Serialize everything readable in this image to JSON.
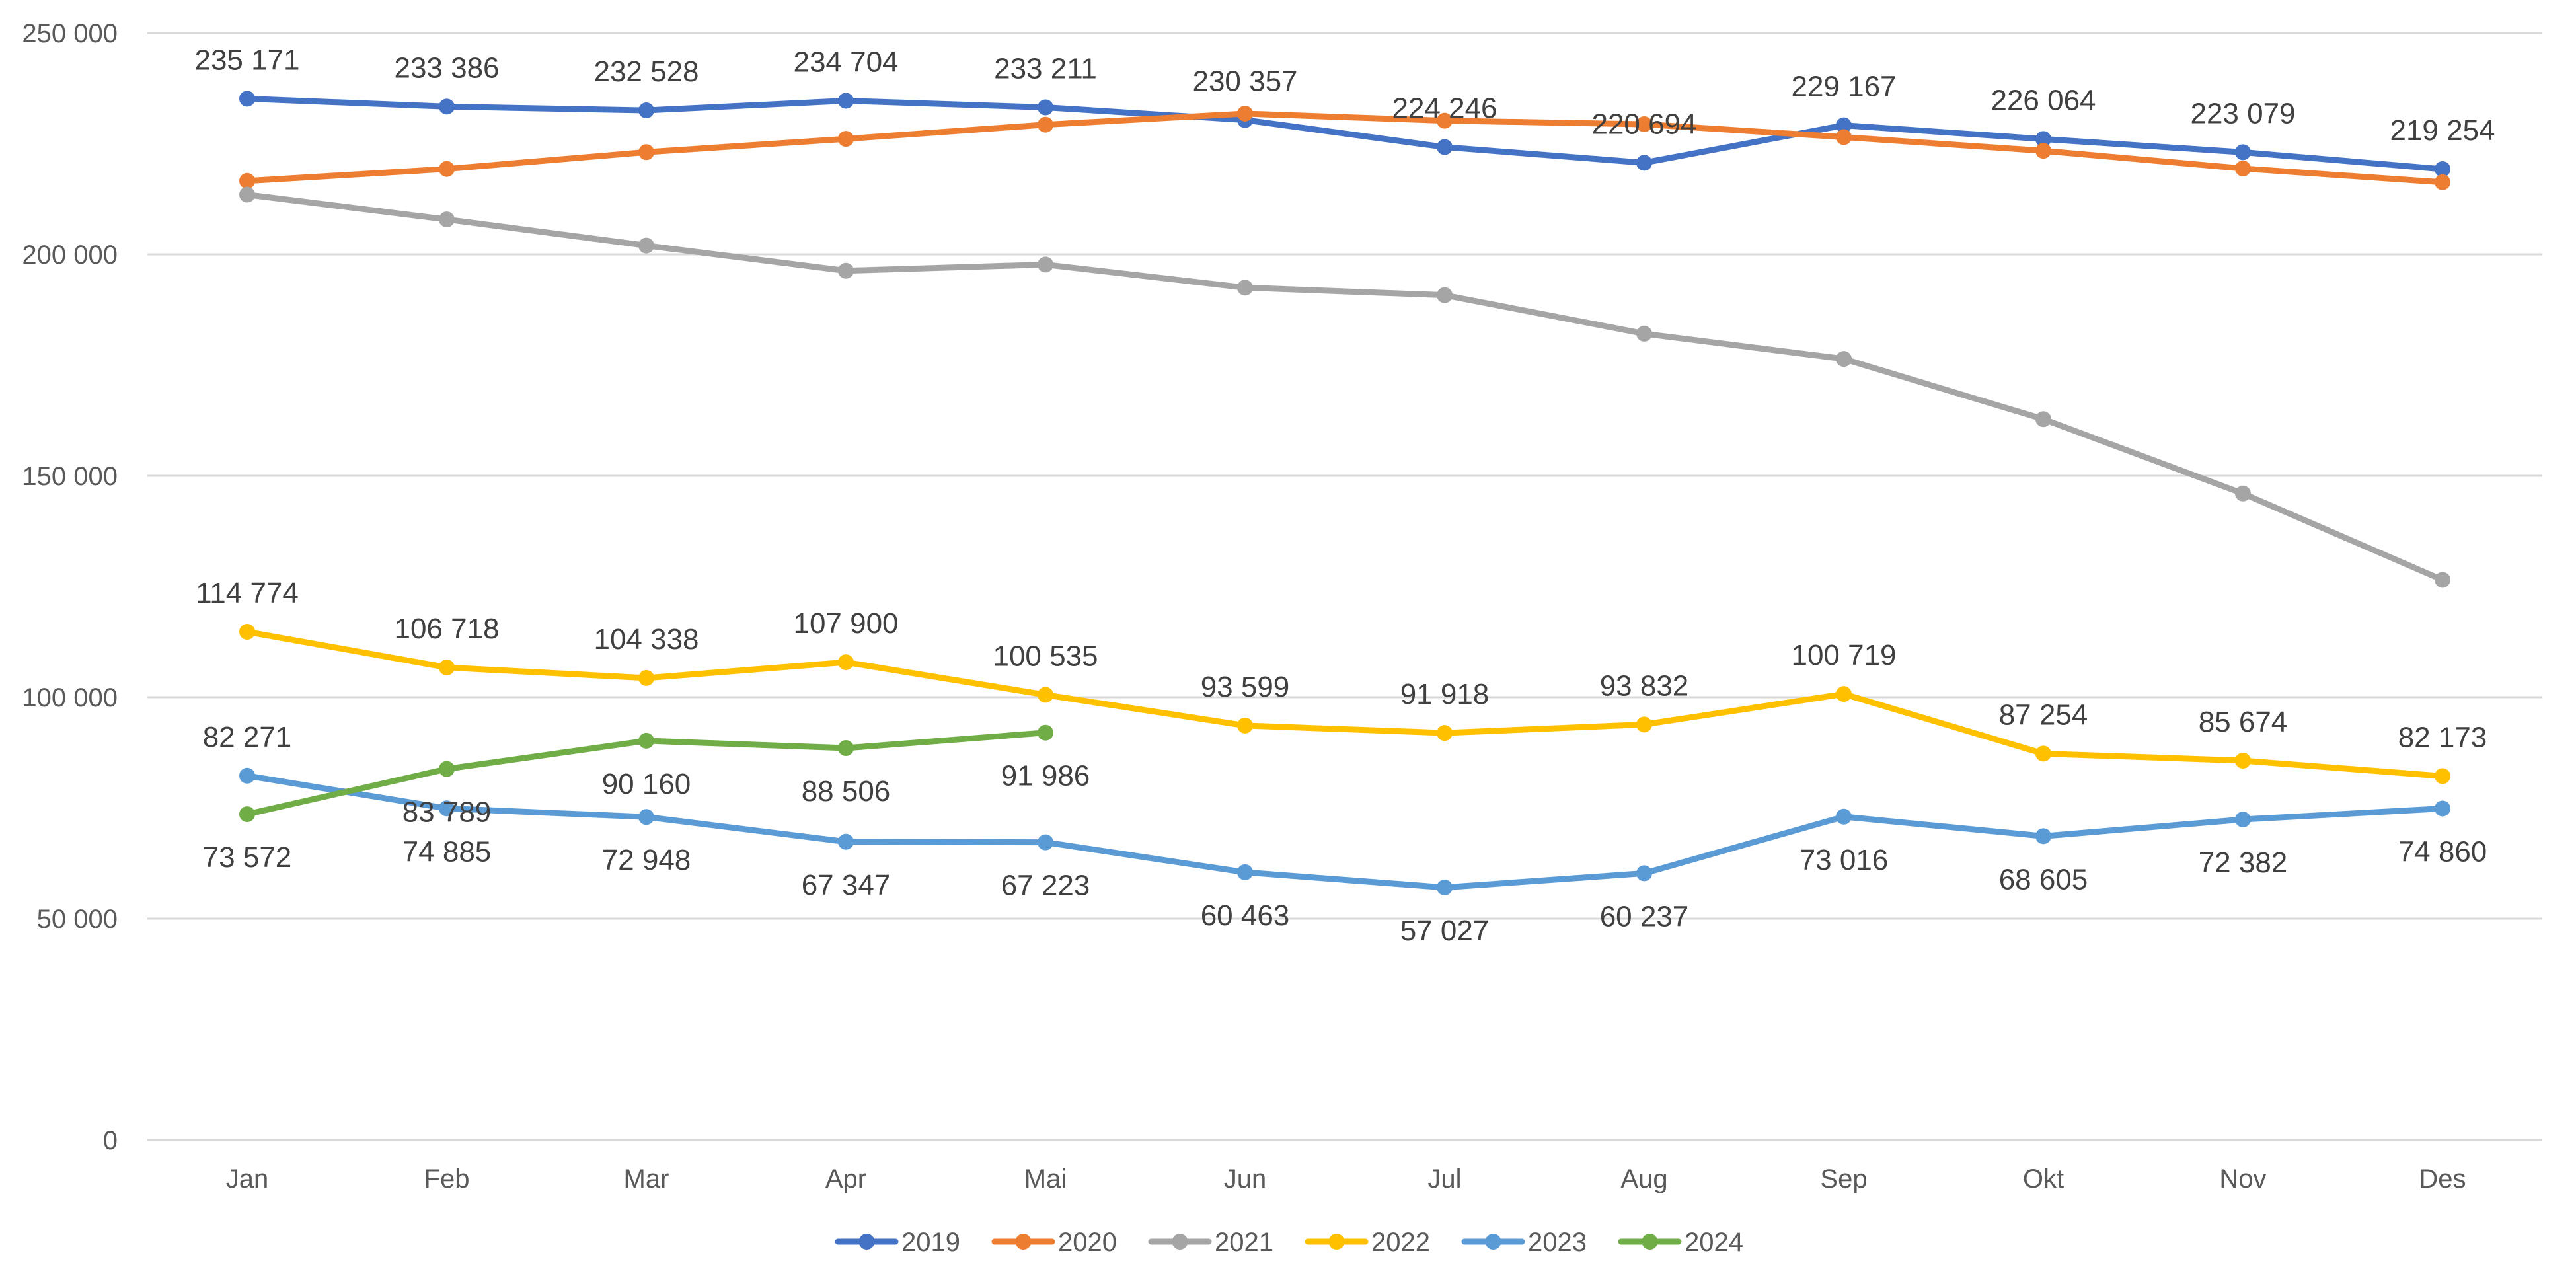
{
  "chart_data": {
    "type": "line",
    "title": "",
    "xlabel": "",
    "ylabel": "",
    "categories": [
      "Jan",
      "Feb",
      "Mar",
      "Apr",
      "Mai",
      "Jun",
      "Jul",
      "Aug",
      "Sep",
      "Okt",
      "Nov",
      "Des"
    ],
    "ylim": [
      0,
      250000
    ],
    "yticks": [
      0,
      50000,
      100000,
      150000,
      200000,
      250000
    ],
    "ytick_labels": [
      "0",
      "50 000",
      "100 000",
      "150 000",
      "200 000",
      "250 000"
    ],
    "grid": true,
    "legend_position": "bottom",
    "series": [
      {
        "name": "2019",
        "color": "#4472C4",
        "values": [
          235171,
          233386,
          232528,
          234704,
          233211,
          230357,
          224246,
          220694,
          229167,
          226064,
          223079,
          219254
        ],
        "labels": [
          "235 171",
          "233 386",
          "232 528",
          "234 704",
          "233 211",
          "230 357",
          "224 246",
          "220 694",
          "229 167",
          "226 064",
          "223 079",
          "219 254"
        ],
        "label_position": [
          "above",
          "above",
          "above",
          "above",
          "above",
          "above",
          "above",
          "above",
          "above",
          "above",
          "above",
          "above"
        ]
      },
      {
        "name": "2020",
        "color": "#ED7D31",
        "values": [
          216600,
          219300,
          223100,
          226100,
          229300,
          231800,
          230200,
          229400,
          226500,
          223400,
          219400,
          216300
        ],
        "labels": null,
        "estimated": true
      },
      {
        "name": "2021",
        "color": "#A5A5A5",
        "values": [
          213500,
          207900,
          202000,
          196300,
          197700,
          192500,
          190800,
          182100,
          176400,
          162800,
          146000,
          126500
        ],
        "labels": null,
        "estimated": true
      },
      {
        "name": "2022",
        "color": "#FFC000",
        "values": [
          114774,
          106718,
          104338,
          107900,
          100535,
          93599,
          91918,
          93832,
          100719,
          87254,
          85674,
          82173
        ],
        "labels": [
          "114 774",
          "106 718",
          "104 338",
          "107 900",
          "100 535",
          "93 599",
          "91 918",
          "93 832",
          "100 719",
          "87 254",
          "85 674",
          "82 173"
        ],
        "label_position": [
          "above",
          "above",
          "above",
          "above",
          "above",
          "above",
          "above",
          "above",
          "above",
          "above",
          "above",
          "above"
        ]
      },
      {
        "name": "2023",
        "color": "#5B9BD5",
        "values": [
          82271,
          74885,
          72948,
          67347,
          67223,
          60463,
          57027,
          60237,
          73016,
          68605,
          72382,
          74860
        ],
        "labels": [
          "82 271",
          "74 885",
          "72 948",
          "67 347",
          "67 223",
          "60 463",
          "57 027",
          "60 237",
          "73 016",
          "68 605",
          "72 382",
          "74 860"
        ],
        "label_position": [
          "above",
          "below",
          "below",
          "below",
          "below",
          "below",
          "below",
          "below",
          "below",
          "below",
          "below",
          "below"
        ]
      },
      {
        "name": "2024",
        "color": "#70AD47",
        "values": [
          73572,
          83789,
          90160,
          88506,
          91986
        ],
        "labels": [
          "73 572",
          "83 789",
          "90 160",
          "88 506",
          "91 986"
        ],
        "label_position": [
          "below",
          "below",
          "below",
          "below",
          "below"
        ]
      }
    ]
  }
}
